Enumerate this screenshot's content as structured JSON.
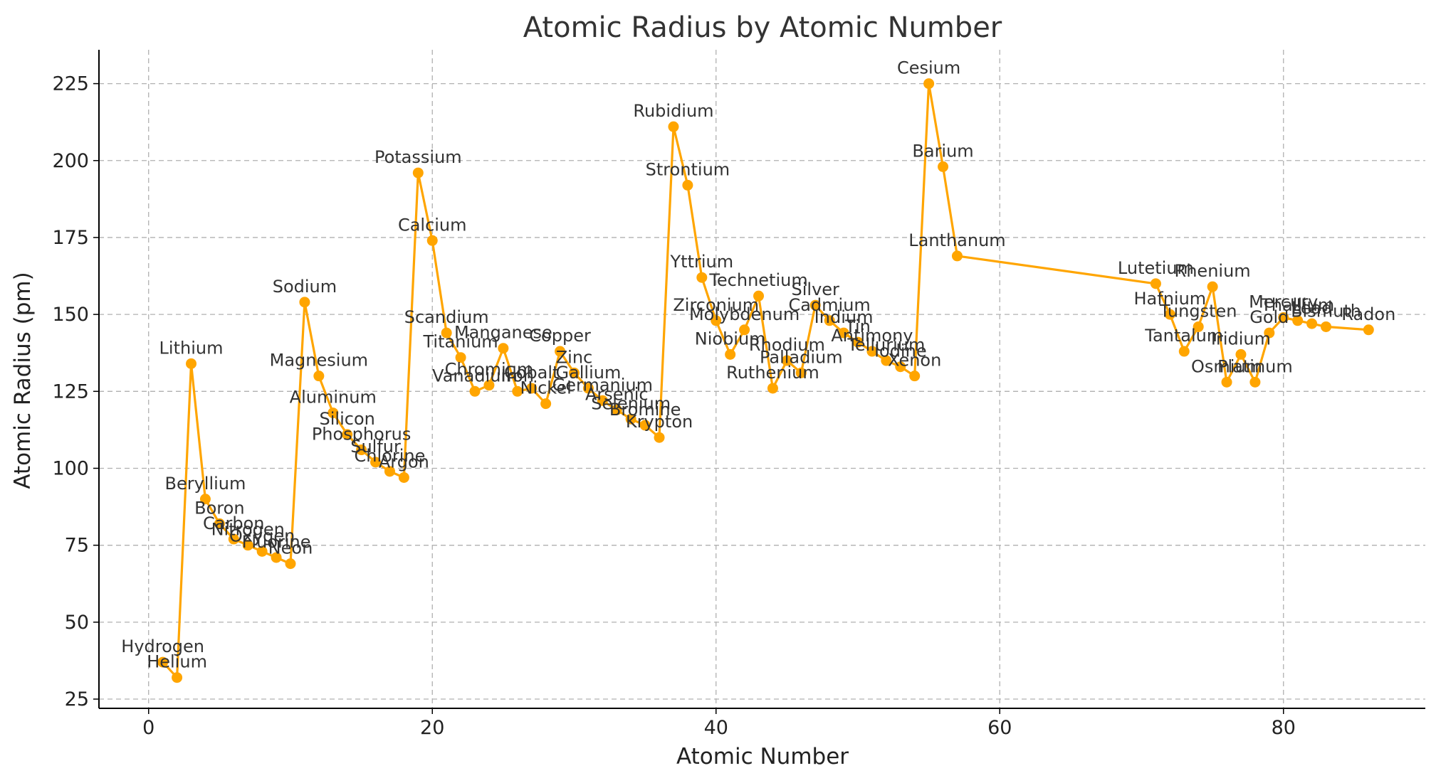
{
  "chart_data": {
    "type": "line",
    "title": "Atomic Radius by Atomic Number",
    "xlabel": "Atomic Number",
    "ylabel": "Atomic Radius (pm)",
    "xlim": [
      -3.5,
      90
    ],
    "ylim": [
      22,
      236
    ],
    "xticks": [
      0,
      20,
      40,
      60,
      80
    ],
    "yticks": [
      25,
      50,
      75,
      100,
      125,
      150,
      175,
      200,
      225
    ],
    "grid": true,
    "color": "#FFA500",
    "points": [
      {
        "x": 1,
        "y": 37,
        "label": "Hydrogen"
      },
      {
        "x": 2,
        "y": 32,
        "label": "Helium"
      },
      {
        "x": 3,
        "y": 134,
        "label": "Lithium"
      },
      {
        "x": 4,
        "y": 90,
        "label": "Beryllium"
      },
      {
        "x": 5,
        "y": 82,
        "label": "Boron"
      },
      {
        "x": 6,
        "y": 77,
        "label": "Carbon"
      },
      {
        "x": 7,
        "y": 75,
        "label": "Nitrogen"
      },
      {
        "x": 8,
        "y": 73,
        "label": "Oxygen"
      },
      {
        "x": 9,
        "y": 71,
        "label": "Fluorine"
      },
      {
        "x": 10,
        "y": 69,
        "label": "Neon"
      },
      {
        "x": 11,
        "y": 154,
        "label": "Sodium"
      },
      {
        "x": 12,
        "y": 130,
        "label": "Magnesium"
      },
      {
        "x": 13,
        "y": 118,
        "label": "Aluminum"
      },
      {
        "x": 14,
        "y": 111,
        "label": "Silicon"
      },
      {
        "x": 15,
        "y": 106,
        "label": "Phosphorus"
      },
      {
        "x": 16,
        "y": 102,
        "label": "Sulfur"
      },
      {
        "x": 17,
        "y": 99,
        "label": "Chlorine"
      },
      {
        "x": 18,
        "y": 97,
        "label": "Argon"
      },
      {
        "x": 19,
        "y": 196,
        "label": "Potassium"
      },
      {
        "x": 20,
        "y": 174,
        "label": "Calcium"
      },
      {
        "x": 21,
        "y": 144,
        "label": "Scandium"
      },
      {
        "x": 22,
        "y": 136,
        "label": "Titanium"
      },
      {
        "x": 23,
        "y": 125,
        "label": "Vanadium"
      },
      {
        "x": 24,
        "y": 127,
        "label": "Chromium"
      },
      {
        "x": 25,
        "y": 139,
        "label": "Manganese"
      },
      {
        "x": 26,
        "y": 125,
        "label": "Iron"
      },
      {
        "x": 27,
        "y": 126,
        "label": "Cobalt"
      },
      {
        "x": 28,
        "y": 121,
        "label": "Nickel"
      },
      {
        "x": 29,
        "y": 138,
        "label": "Copper"
      },
      {
        "x": 30,
        "y": 131,
        "label": "Zinc"
      },
      {
        "x": 31,
        "y": 126,
        "label": "Gallium"
      },
      {
        "x": 32,
        "y": 122,
        "label": "Germanium"
      },
      {
        "x": 33,
        "y": 119,
        "label": "Arsenic"
      },
      {
        "x": 34,
        "y": 116,
        "label": "Selenium"
      },
      {
        "x": 35,
        "y": 114,
        "label": "Bromine"
      },
      {
        "x": 36,
        "y": 110,
        "label": "Krypton"
      },
      {
        "x": 37,
        "y": 211,
        "label": "Rubidium"
      },
      {
        "x": 38,
        "y": 192,
        "label": "Strontium"
      },
      {
        "x": 39,
        "y": 162,
        "label": "Yttrium"
      },
      {
        "x": 40,
        "y": 148,
        "label": "Zirconium"
      },
      {
        "x": 41,
        "y": 137,
        "label": "Niobium"
      },
      {
        "x": 42,
        "y": 145,
        "label": "Molybdenum"
      },
      {
        "x": 43,
        "y": 156,
        "label": "Technetium"
      },
      {
        "x": 44,
        "y": 126,
        "label": "Ruthenium"
      },
      {
        "x": 45,
        "y": 135,
        "label": "Rhodium"
      },
      {
        "x": 46,
        "y": 131,
        "label": "Palladium"
      },
      {
        "x": 47,
        "y": 153,
        "label": "Silver"
      },
      {
        "x": 48,
        "y": 148,
        "label": "Cadmium"
      },
      {
        "x": 49,
        "y": 144,
        "label": "Indium"
      },
      {
        "x": 50,
        "y": 141,
        "label": "Tin"
      },
      {
        "x": 51,
        "y": 138,
        "label": "Antimony"
      },
      {
        "x": 52,
        "y": 135,
        "label": "Tellurium"
      },
      {
        "x": 53,
        "y": 133,
        "label": "Iodine"
      },
      {
        "x": 54,
        "y": 130,
        "label": "Xenon"
      },
      {
        "x": 55,
        "y": 225,
        "label": "Cesium"
      },
      {
        "x": 56,
        "y": 198,
        "label": "Barium"
      },
      {
        "x": 57,
        "y": 169,
        "label": "Lanthanum"
      },
      {
        "x": 71,
        "y": 160,
        "label": "Lutetium"
      },
      {
        "x": 72,
        "y": 150,
        "label": "Hafnium"
      },
      {
        "x": 73,
        "y": 138,
        "label": "Tantalum"
      },
      {
        "x": 74,
        "y": 146,
        "label": "Tungsten"
      },
      {
        "x": 75,
        "y": 159,
        "label": "Rhenium"
      },
      {
        "x": 76,
        "y": 128,
        "label": "Osmium"
      },
      {
        "x": 77,
        "y": 137,
        "label": "Iridium"
      },
      {
        "x": 78,
        "y": 128,
        "label": "Platinum"
      },
      {
        "x": 79,
        "y": 144,
        "label": "Gold"
      },
      {
        "x": 80,
        "y": 149,
        "label": "Mercury"
      },
      {
        "x": 81,
        "y": 148,
        "label": "Thallium"
      },
      {
        "x": 82,
        "y": 147,
        "label": "Lead"
      },
      {
        "x": 83,
        "y": 146,
        "label": "Bismuth"
      },
      {
        "x": 86,
        "y": 145,
        "label": "Radon"
      }
    ]
  }
}
